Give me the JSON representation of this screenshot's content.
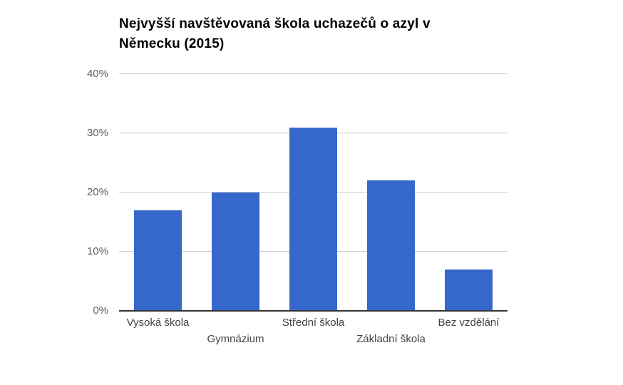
{
  "header": {
    "title_line1": "Nejvyšší navštěvovaná škola uchazečů o azyl v",
    "title_line2": "Německu (2015)"
  },
  "chart_data": {
    "type": "bar",
    "title": "Nejvyšší navštěvovaná škola uchazečů o azyl v Německu (2015)",
    "categories": [
      "Vysoká škola",
      "Gymnázium",
      "Střední škola",
      "Základní škola",
      "Bez vzdělání"
    ],
    "values": [
      17,
      20,
      31,
      22,
      7
    ],
    "unit": "%",
    "xlabel": "",
    "ylabel": "",
    "ylim": [
      0,
      40
    ],
    "yticks": [
      0,
      10,
      20,
      30,
      40
    ],
    "ytick_labels": [
      "0%",
      "10%",
      "20%",
      "30%",
      "40%"
    ],
    "grid": true,
    "legend": "none",
    "xlabels_staggered": true,
    "colors": {
      "bar": "#3667ca",
      "gridline": "#cccccc",
      "axis_line": "#333333",
      "ytick_text": "#616161",
      "xtick_text": "#424242",
      "title_text": "#000000",
      "background": "#ffffff"
    }
  }
}
